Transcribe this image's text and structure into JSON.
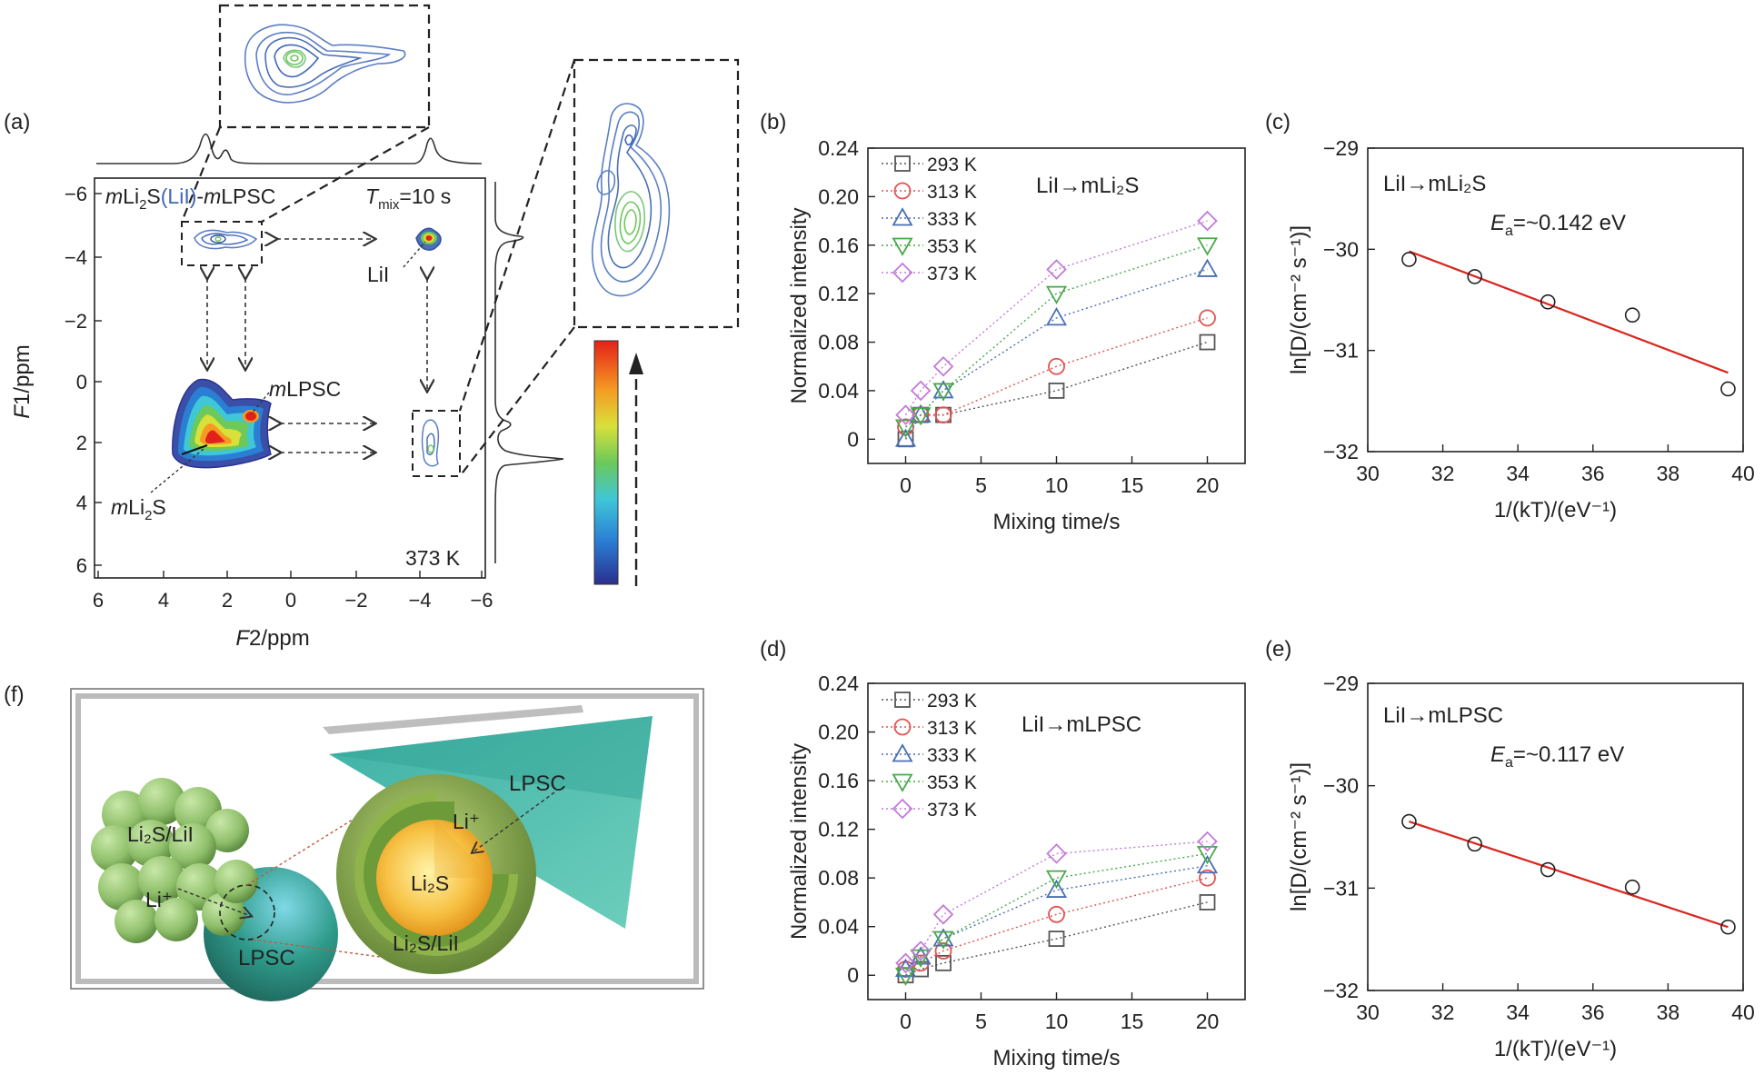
{
  "figure": {
    "panel_labels": [
      "(a)",
      "(b)",
      "(c)",
      "(d)",
      "(e)",
      "(f)"
    ]
  },
  "panel_a": {
    "title_m": "m",
    "title_li2s": "Li",
    "title_sub2": "2",
    "title_s": "S",
    "title_lii": "(LiI)",
    "title_dash": "-",
    "title_mlpsc_m": "m",
    "title_mlpsc": "LPSC",
    "tmix_T": "T",
    "tmix_sub": "mix",
    "tmix_val": "=10 s",
    "label_lii": "LiI",
    "label_mlpsc_m": "m",
    "label_mlpsc": "LPSC",
    "label_mli2s_m": "m",
    "label_mli2s_li": "Li",
    "label_mli2s_sub": "2",
    "label_mli2s_s": "S",
    "temperature": "373 K",
    "xlabel_italic": "F",
    "xlabel_rest": "2/ppm",
    "ylabel_italic": "F",
    "ylabel_rest": "1/ppm",
    "x_ticks": [
      "6",
      "4",
      "2",
      "0",
      "−2",
      "−4",
      "−6"
    ],
    "y_ticks": [
      "−6",
      "−4",
      "−2",
      "0",
      "2",
      "4",
      "6"
    ],
    "colors": {
      "contour_outer": "#5b7fc4",
      "contour_mid": "#7bc67b",
      "contour_hot": "#e8271c"
    }
  },
  "panel_f": {
    "labels": {
      "cluster": "Li₂S/LiI",
      "li_plus_left": "Li⁺",
      "lpsc_ball": "LPSC",
      "li_plus_core": "Li⁺",
      "core": "Li₂S",
      "shell": "Li₂S/LiI",
      "lpsc_slab": "LPSC"
    },
    "colors": {
      "cluster": "#8fbf6a",
      "ball": "#2f9a8a",
      "shell": "#6d9b3a",
      "core": "#f2a81f",
      "slab": "#3bb5a1"
    }
  },
  "chart_data": [
    {
      "id": "b",
      "type": "line",
      "annotation": "LiI→mLi₂S",
      "xlabel": "Mixing time/s",
      "ylabel": "Normalized intensity",
      "xlim": [
        -2.5,
        22.5
      ],
      "ylim": [
        -0.02,
        0.24
      ],
      "xticks": [
        0,
        5,
        10,
        15,
        20
      ],
      "yticks": [
        0,
        0.04,
        0.08,
        0.12,
        0.16,
        0.2,
        0.24
      ],
      "ytick_labels": [
        "0",
        "0.04",
        "0.08",
        "0.12",
        "0.16",
        "0.20",
        "0.24"
      ],
      "x": [
        0,
        1,
        2.5,
        10,
        20
      ],
      "series": [
        {
          "name": "293 K",
          "marker": "square",
          "color": "#555555",
          "values": [
            0.0,
            0.02,
            0.02,
            0.04,
            0.08
          ]
        },
        {
          "name": "313 K",
          "marker": "circle",
          "color": "#e05252",
          "values": [
            0.01,
            0.02,
            0.02,
            0.06,
            0.1
          ]
        },
        {
          "name": "333 K",
          "marker": "triangle-up",
          "color": "#4a6fb5",
          "values": [
            0.0,
            0.02,
            0.04,
            0.1,
            0.14
          ]
        },
        {
          "name": "353 K",
          "marker": "triangle-down",
          "color": "#49a84b",
          "values": [
            0.01,
            0.02,
            0.04,
            0.12,
            0.16
          ]
        },
        {
          "name": "373 K",
          "marker": "diamond",
          "color": "#c27ad8",
          "values": [
            0.02,
            0.04,
            0.06,
            0.14,
            0.18
          ]
        }
      ]
    },
    {
      "id": "c",
      "type": "scatter",
      "annotation": "LiI→mLi₂S",
      "ea_text": "=~0.142 eV",
      "xlabel": "1/(kT)/(eV⁻¹)",
      "ylabel": "ln[D/(cm⁻² s⁻¹)]",
      "xlim": [
        30,
        40
      ],
      "ylim": [
        -32,
        -29
      ],
      "xticks": [
        30,
        32,
        34,
        36,
        38,
        40
      ],
      "yticks": [
        -29,
        -30,
        -31,
        -32
      ],
      "ytick_labels": [
        "−29",
        "−30",
        "−31",
        "−32"
      ],
      "x": [
        31.1,
        32.85,
        34.8,
        37.05,
        39.6
      ],
      "y": [
        -30.1,
        -30.27,
        -30.52,
        -30.65,
        -31.38
      ],
      "fit": {
        "x": [
          31.1,
          39.6
        ],
        "y": [
          -30.02,
          -31.22
        ],
        "color": "#d9251d"
      }
    },
    {
      "id": "d",
      "type": "line",
      "annotation": "LiI→mLPSC",
      "xlabel": "Mixing time/s",
      "ylabel": "Normalized intensity",
      "xlim": [
        -2.5,
        22.5
      ],
      "ylim": [
        -0.02,
        0.24
      ],
      "xticks": [
        0,
        5,
        10,
        15,
        20
      ],
      "yticks": [
        0,
        0.04,
        0.08,
        0.12,
        0.16,
        0.2,
        0.24
      ],
      "ytick_labels": [
        "0",
        "0.04",
        "0.08",
        "0.12",
        "0.16",
        "0.20",
        "0.24"
      ],
      "x": [
        0,
        1,
        2.5,
        10,
        20
      ],
      "series": [
        {
          "name": "293 K",
          "marker": "square",
          "color": "#555555",
          "values": [
            0.0,
            0.005,
            0.01,
            0.03,
            0.06
          ]
        },
        {
          "name": "313 K",
          "marker": "circle",
          "color": "#e05252",
          "values": [
            0.005,
            0.01,
            0.02,
            0.05,
            0.08
          ]
        },
        {
          "name": "333 K",
          "marker": "triangle-up",
          "color": "#4a6fb5",
          "values": [
            0.005,
            0.015,
            0.03,
            0.07,
            0.09
          ]
        },
        {
          "name": "353 K",
          "marker": "triangle-down",
          "color": "#49a84b",
          "values": [
            0.0,
            0.015,
            0.03,
            0.08,
            0.1
          ]
        },
        {
          "name": "373 K",
          "marker": "diamond",
          "color": "#c27ad8",
          "values": [
            0.01,
            0.02,
            0.05,
            0.1,
            0.11
          ]
        }
      ]
    },
    {
      "id": "e",
      "type": "scatter",
      "annotation": "LiI→mLPSC",
      "ea_text": "=~0.117 eV",
      "xlabel": "1/(kT)/(eV⁻¹)",
      "ylabel": "ln[D/(cm⁻² s⁻¹)]",
      "xlim": [
        30,
        40
      ],
      "ylim": [
        -32,
        -29
      ],
      "xticks": [
        30,
        32,
        34,
        36,
        38,
        40
      ],
      "yticks": [
        -29,
        -30,
        -31,
        -32
      ],
      "ytick_labels": [
        "−29",
        "−30",
        "−31",
        "−32"
      ],
      "x": [
        31.1,
        32.85,
        34.8,
        37.05,
        39.6
      ],
      "y": [
        -30.35,
        -30.57,
        -30.82,
        -30.99,
        -31.38
      ],
      "fit": {
        "x": [
          31.1,
          39.6
        ],
        "y": [
          -30.35,
          -31.38
        ],
        "color": "#d9251d"
      }
    }
  ]
}
